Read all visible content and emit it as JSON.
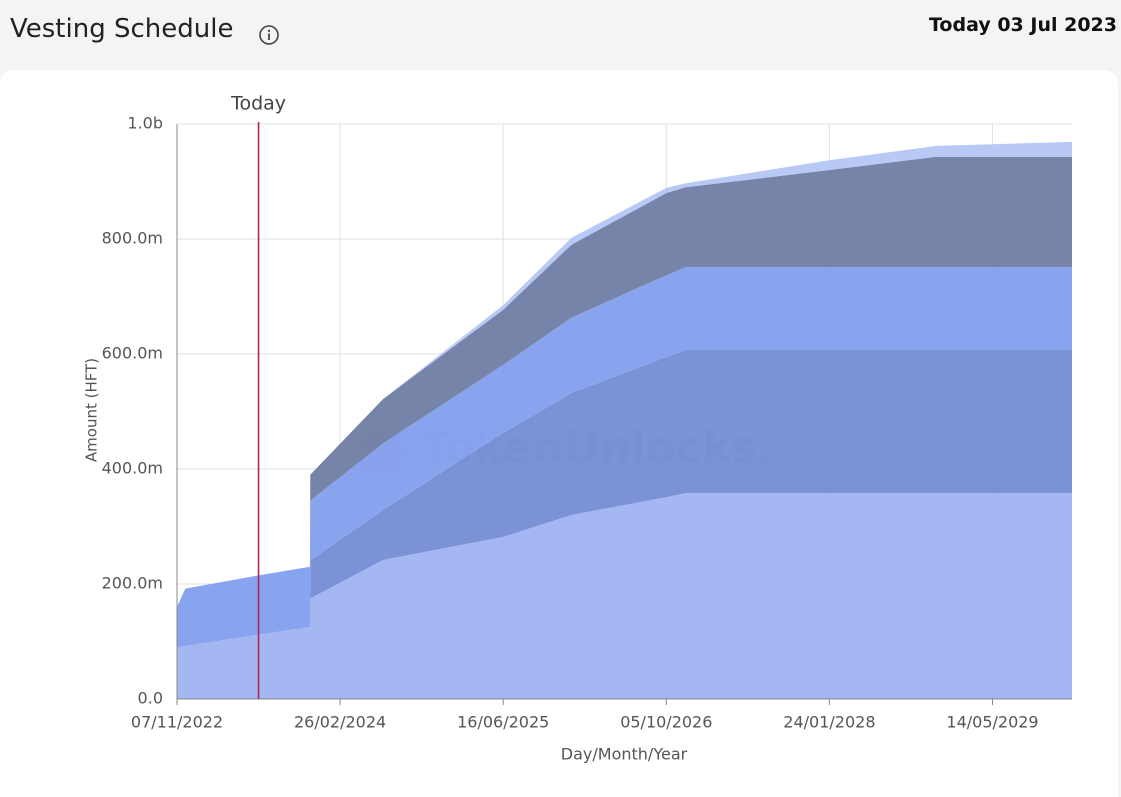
{
  "chart_data": {
    "type": "stacked_area",
    "title": "Vesting Schedule",
    "subtitle": "Today 03 Jul 2023",
    "y_label": "Amount (HFT)",
    "x_label": "Day/Month/Year",
    "watermark": "TokenUnlocks.",
    "annotation": {
      "label": "Today",
      "x": "03/07/2023",
      "color": "#b0245a"
    },
    "x": [
      "07/11/2022",
      "01/12/2022",
      "03/07/2023",
      "30/11/2023",
      "01/12/2023",
      "01/07/2024",
      "16/06/2025",
      "01/01/2026",
      "05/10/2026",
      "01/12/2026",
      "24/01/2028",
      "01/12/2028",
      "01/01/2030"
    ],
    "series": [
      {
        "color": "#9cb1f2",
        "values": [
          90,
          92,
          112,
          125,
          175,
          242,
          282,
          320,
          351,
          358,
          358,
          358,
          358
        ]
      },
      {
        "color": "#7189d3",
        "values": [
          0,
          0,
          0,
          0,
          66,
          87,
          181,
          212,
          244,
          249,
          249,
          249,
          249
        ]
      },
      {
        "color": "#7f9cee",
        "values": [
          70,
          100,
          103,
          105,
          104,
          116,
          118,
          131,
          142,
          144,
          144,
          144,
          144
        ]
      },
      {
        "color": "#6b7aa2",
        "values": [
          0,
          0,
          0,
          0,
          45,
          77,
          96,
          127,
          143,
          139,
          169,
          192,
          192
        ]
      },
      {
        "color": "#b3c4f5",
        "values": [
          0,
          0,
          0,
          0,
          0,
          0,
          8,
          12,
          9,
          7,
          17,
          19,
          26
        ]
      }
    ],
    "xlim": [
      "07/11/2022",
      "01/01/2030"
    ],
    "xticks": [
      "07/11/2022",
      "26/02/2024",
      "16/06/2025",
      "05/10/2026",
      "24/01/2028",
      "14/05/2029"
    ],
    "ylim": [
      0,
      1000
    ],
    "yticks": [
      {
        "value": 0,
        "label": "0.0"
      },
      {
        "value": 200,
        "label": "200.0m"
      },
      {
        "value": 400,
        "label": "400.0m"
      },
      {
        "value": 600,
        "label": "600.0m"
      },
      {
        "value": 800,
        "label": "800.0m"
      },
      {
        "value": 1000,
        "label": "1.0b"
      }
    ],
    "grid": true
  }
}
